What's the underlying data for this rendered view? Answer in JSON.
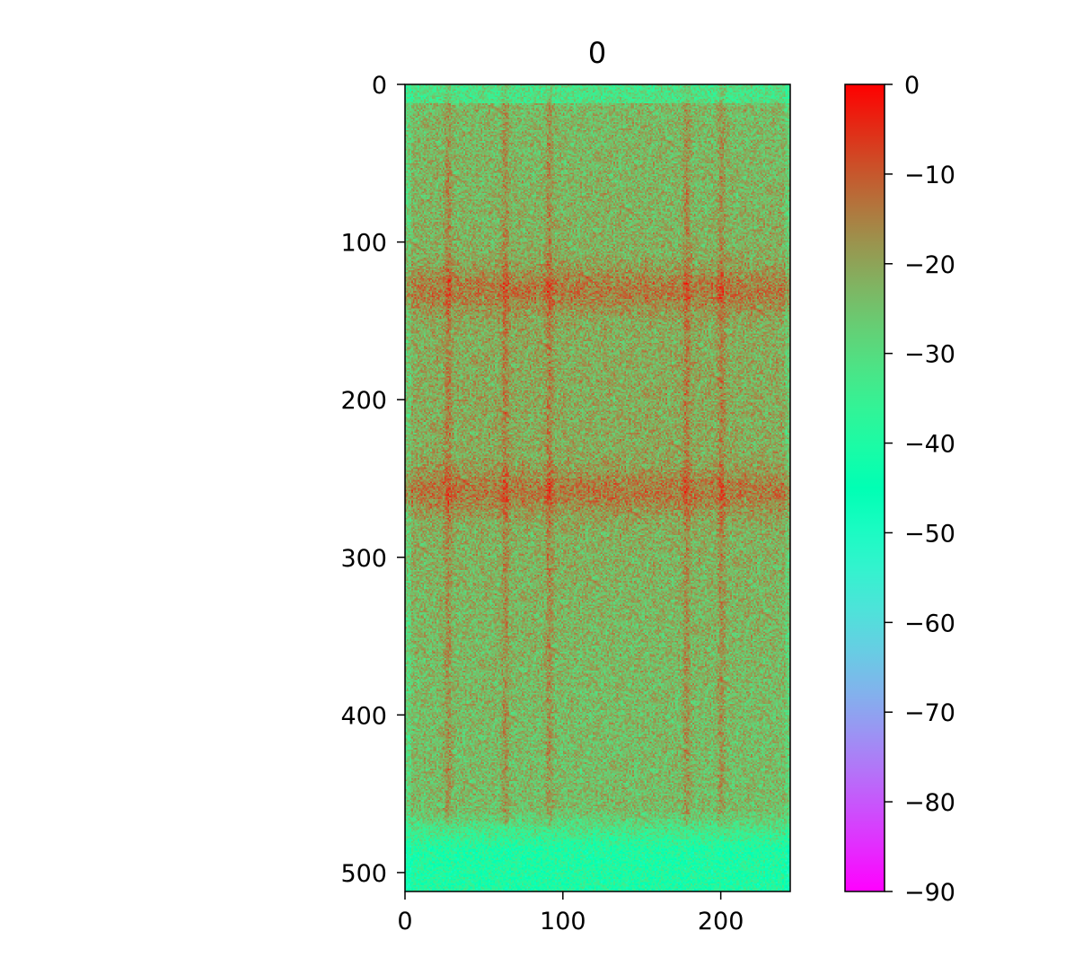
{
  "chart_data": {
    "type": "heatmap",
    "title": "0",
    "colormap": "rainbow",
    "xlim": [
      0,
      244
    ],
    "ylim": [
      512,
      0
    ],
    "xticks": [
      0,
      100,
      200
    ],
    "yticks": [
      0,
      100,
      200,
      300,
      400,
      500
    ],
    "colorbar": {
      "range": [
        -90,
        0
      ],
      "ticks": [
        0,
        -10,
        -20,
        -30,
        -40,
        -50,
        -60,
        -70,
        -80,
        -90
      ]
    },
    "features": {
      "bright_vertical_lines_x": [
        27,
        63,
        91,
        178,
        200
      ],
      "bright_horizontal_bands_y": [
        130,
        258
      ],
      "dim_bottom_rows_from_y": 460,
      "typical_value_range": [
        -35,
        -10
      ]
    }
  }
}
